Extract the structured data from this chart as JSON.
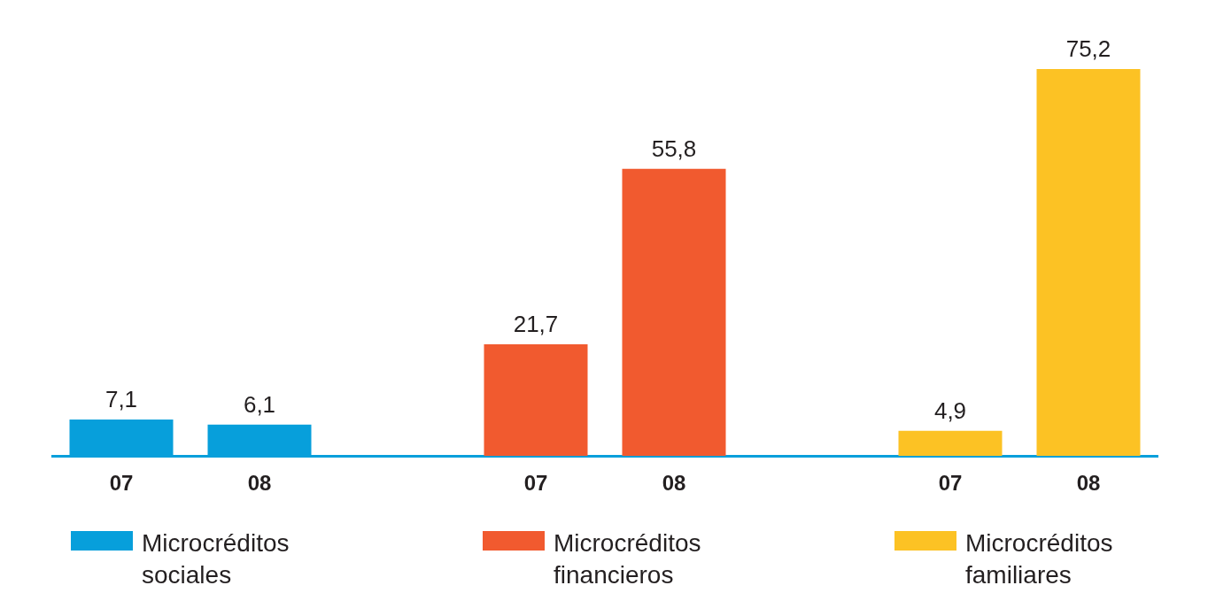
{
  "chart_data": {
    "type": "bar",
    "categories": [
      "07",
      "08",
      null,
      "07",
      "08",
      null,
      "07",
      "08"
    ],
    "series": [
      {
        "name": "Microcréditos sociales",
        "color": "#079fdb",
        "values": [
          7.1,
          6.1,
          null,
          null,
          null,
          null,
          null,
          null
        ],
        "value_labels": [
          "7,1",
          "6,1",
          null,
          null,
          null,
          null,
          null,
          null
        ]
      },
      {
        "name": "Microcréditos financieros",
        "color": "#f15a2f",
        "values": [
          null,
          null,
          null,
          21.7,
          55.8,
          null,
          null,
          null
        ],
        "value_labels": [
          null,
          null,
          null,
          "21,7",
          "55,8",
          null,
          null,
          null
        ]
      },
      {
        "name": "Microcréditos familiares",
        "color": "#fcc224",
        "values": [
          null,
          null,
          null,
          null,
          null,
          null,
          4.9,
          75.2
        ],
        "value_labels": [
          null,
          null,
          null,
          null,
          null,
          null,
          "4,9",
          "75,2"
        ]
      }
    ],
    "legend": "bottom",
    "grid": false
  }
}
